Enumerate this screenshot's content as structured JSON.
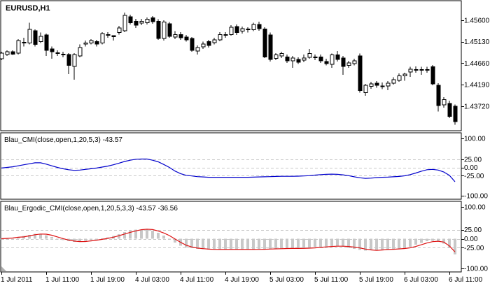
{
  "window": {
    "title": "EURUSD,H1"
  },
  "colors": {
    "background": "#ffffff",
    "panel_border": "#000000",
    "grid_dashed": "#c8c8c8",
    "bull_candle": "#ffffff",
    "bear_candle": "#000000",
    "cmi_line": "#0000cc",
    "ergodic_line": "#dd1111",
    "histogram": "#c8c8c8",
    "text": "#000000"
  },
  "main_chart": {
    "title": "EURUSD,H1",
    "price_axis_labels": [
      "1.45600",
      "1.45130",
      "1.44660",
      "1.44190",
      "1.43720"
    ]
  },
  "cmi_panel": {
    "title": "Blau_CMI(close,open,1,20,5,3) -43.57",
    "indicator_name": "Blau_CMI",
    "params": "close,open,1,20,5,3",
    "current_value": -43.57,
    "axis_labels": [
      "100.00",
      "25.00",
      "0.00",
      "-25.00",
      "-100.00"
    ]
  },
  "ergodic_panel": {
    "title": "Blau_Ergodic_CMI(close,open,1,20,5,3,3) -43.57 -36.56",
    "indicator_name": "Blau_Ergodic_CMI",
    "params": "close,open,1,20,5,3,3",
    "current_values": [
      -43.57,
      -36.56
    ],
    "axis_labels": [
      "100.00",
      "25.00",
      "0.00",
      "-25.00",
      "-100.00"
    ]
  },
  "time_axis_labels": [
    "1 Jul 2011",
    "1 Jul 11:00",
    "1 Jul 19:00",
    "4 Jul 03:00",
    "4 Jul 11:00",
    "4 Jul 19:00",
    "5 Jul 03:00",
    "5 Jul 11:00",
    "5 Jul 19:00",
    "6 Jul 03:00",
    "6 Jul 11:00"
  ],
  "chart_data": [
    {
      "type": "candlestick",
      "name": "EURUSD",
      "timeframe": "H1",
      "title": "EURUSD,H1",
      "x_tick_labels": [
        "1 Jul 2011",
        "1 Jul 11:00",
        "1 Jul 19:00",
        "4 Jul 03:00",
        "4 Jul 11:00",
        "4 Jul 19:00",
        "5 Jul 03:00",
        "5 Jul 11:00",
        "5 Jul 19:00",
        "6 Jul 03:00",
        "6 Jul 11:00"
      ],
      "y_tick_labels": [
        "1.45600",
        "1.45130",
        "1.44660",
        "1.44190",
        "1.43720"
      ],
      "bars_per_tick": 8,
      "candles_ohlc": [
        [
          1.4476,
          1.4491,
          1.4473,
          1.4488
        ],
        [
          1.4485,
          1.4494,
          1.4482,
          1.4491
        ],
        [
          1.4491,
          1.4494,
          1.4484,
          1.4486
        ],
        [
          1.4488,
          1.4519,
          1.4485,
          1.4516
        ],
        [
          1.4511,
          1.4522,
          1.4503,
          1.4512
        ],
        [
          1.451,
          1.4555,
          1.4507,
          1.454
        ],
        [
          1.4537,
          1.454,
          1.4503,
          1.4507
        ],
        [
          1.4513,
          1.4533,
          1.451,
          1.4525
        ],
        [
          1.4528,
          1.4531,
          1.4482,
          1.4494
        ],
        [
          1.4497,
          1.4503,
          1.4476,
          1.4491
        ],
        [
          1.4488,
          1.4494,
          1.4482,
          1.4489
        ],
        [
          1.4486,
          1.4491,
          1.4479,
          1.4485
        ],
        [
          1.4485,
          1.4488,
          1.4442,
          1.4461
        ],
        [
          1.4459,
          1.4488,
          1.443,
          1.4485
        ],
        [
          1.4482,
          1.4507,
          1.4479,
          1.45
        ],
        [
          1.4508,
          1.4516,
          1.4503,
          1.451
        ],
        [
          1.451,
          1.4519,
          1.4507,
          1.4516
        ],
        [
          1.4513,
          1.4517,
          1.4503,
          1.4508
        ],
        [
          1.451,
          1.4534,
          1.4507,
          1.4531
        ],
        [
          1.4528,
          1.4534,
          1.4522,
          1.4529
        ],
        [
          1.4526,
          1.4527,
          1.4516,
          1.4524
        ],
        [
          1.4533,
          1.4548,
          1.4529,
          1.4543
        ],
        [
          1.4537,
          1.4577,
          1.4534,
          1.4571
        ],
        [
          1.4568,
          1.4572,
          1.4551,
          1.4555
        ],
        [
          1.4558,
          1.4563,
          1.4543,
          1.4549
        ],
        [
          1.4554,
          1.4563,
          1.4549,
          1.4558
        ],
        [
          1.4555,
          1.4566,
          1.4551,
          1.4562
        ],
        [
          1.4565,
          1.4569,
          1.4552,
          1.4557
        ],
        [
          1.4558,
          1.4562,
          1.4517,
          1.452
        ],
        [
          1.452,
          1.456,
          1.4516,
          1.4556
        ],
        [
          1.4552,
          1.4556,
          1.4522,
          1.4525
        ],
        [
          1.4523,
          1.4536,
          1.4519,
          1.4529
        ],
        [
          1.4529,
          1.4534,
          1.4517,
          1.4522
        ],
        [
          1.4523,
          1.4528,
          1.4513,
          1.4517
        ],
        [
          1.452,
          1.4523,
          1.4491,
          1.4494
        ],
        [
          1.4493,
          1.4505,
          1.4485,
          1.45
        ],
        [
          1.4502,
          1.4513,
          1.4497,
          1.4508
        ],
        [
          1.4513,
          1.4517,
          1.45,
          1.4505
        ],
        [
          1.4511,
          1.4522,
          1.4507,
          1.4517
        ],
        [
          1.4517,
          1.4534,
          1.4514,
          1.4529
        ],
        [
          1.4528,
          1.4534,
          1.4522,
          1.4529
        ],
        [
          1.4529,
          1.4549,
          1.4526,
          1.4545
        ],
        [
          1.4546,
          1.4551,
          1.4528,
          1.4533
        ],
        [
          1.4536,
          1.4546,
          1.4531,
          1.4542
        ],
        [
          1.454,
          1.4545,
          1.4533,
          1.4541
        ],
        [
          1.4539,
          1.4555,
          1.4536,
          1.4551
        ],
        [
          1.4551,
          1.4557,
          1.4537,
          1.4542
        ],
        [
          1.4541,
          1.4545,
          1.4477,
          1.448
        ],
        [
          1.4528,
          1.4533,
          1.447,
          1.4474
        ],
        [
          1.4477,
          1.4488,
          1.4473,
          1.4484
        ],
        [
          1.4482,
          1.4491,
          1.4477,
          1.4487
        ],
        [
          1.448,
          1.4485,
          1.4467,
          1.4471
        ],
        [
          1.4471,
          1.4482,
          1.4456,
          1.4477
        ],
        [
          1.4474,
          1.4479,
          1.4464,
          1.4468
        ],
        [
          1.4473,
          1.4485,
          1.4468,
          1.4477
        ],
        [
          1.4479,
          1.4497,
          1.4476,
          1.4487
        ],
        [
          1.4479,
          1.4485,
          1.4473,
          1.448
        ],
        [
          1.448,
          1.4485,
          1.4467,
          1.4471
        ],
        [
          1.447,
          1.4476,
          1.4461,
          1.4465
        ],
        [
          1.4464,
          1.4487,
          1.4456,
          1.4484
        ],
        [
          1.4484,
          1.4493,
          1.447,
          1.4474
        ],
        [
          1.4477,
          1.4482,
          1.4441,
          1.4459
        ],
        [
          1.4461,
          1.4471,
          1.4456,
          1.4467
        ],
        [
          1.4465,
          1.4476,
          1.4461,
          1.4471
        ],
        [
          1.4482,
          1.4487,
          1.4402,
          1.4406
        ],
        [
          1.4402,
          1.4421,
          1.4395,
          1.4418
        ],
        [
          1.4415,
          1.4425,
          1.441,
          1.4421
        ],
        [
          1.4422,
          1.4427,
          1.4412,
          1.4418
        ],
        [
          1.4415,
          1.4424,
          1.4409,
          1.4416
        ],
        [
          1.4416,
          1.4427,
          1.4407,
          1.4422
        ],
        [
          1.4422,
          1.4435,
          1.4419,
          1.443
        ],
        [
          1.4428,
          1.4444,
          1.4425,
          1.4438
        ],
        [
          1.4438,
          1.4445,
          1.4428,
          1.4442
        ],
        [
          1.4447,
          1.4458,
          1.4436,
          1.4453
        ],
        [
          1.4451,
          1.4459,
          1.4445,
          1.4452
        ],
        [
          1.4452,
          1.4458,
          1.4441,
          1.4451
        ],
        [
          1.4451,
          1.4458,
          1.4445,
          1.4452
        ],
        [
          1.4458,
          1.4462,
          1.4418,
          1.4421
        ],
        [
          1.4418,
          1.4422,
          1.436,
          1.4373
        ],
        [
          1.4375,
          1.4392,
          1.4369,
          1.4386
        ],
        [
          1.4378,
          1.4384,
          1.4346,
          1.435
        ],
        [
          1.4372,
          1.4376,
          1.4331,
          1.4338
        ]
      ]
    },
    {
      "type": "line",
      "name": "Blau_CMI",
      "params": "close,open,1,20,5,3",
      "color": "#0000cc",
      "range": [
        -100,
        100
      ],
      "levels": [
        25,
        0,
        -25
      ],
      "axis_labels": [
        "100.00",
        "25.00",
        "0.00",
        "-25.00",
        "-100.00"
      ],
      "last_value": -43.57,
      "values": [
        -2,
        0,
        2,
        5,
        8,
        11,
        14,
        14,
        10,
        5,
        0,
        -4,
        -7,
        -9,
        -8,
        -6,
        -4,
        -2,
        1,
        4,
        8,
        13,
        18,
        22,
        25,
        25.5,
        25.5,
        22,
        17,
        9,
        0,
        -11,
        -19,
        -24,
        -26,
        -28,
        -29,
        -30,
        -30,
        -30,
        -30,
        -30,
        -30,
        -30,
        -30,
        -29.5,
        -29,
        -28.5,
        -28,
        -27.5,
        -27,
        -27,
        -27,
        -26.5,
        -26,
        -25,
        -23.5,
        -22,
        -21,
        -20.5,
        -21,
        -22.5,
        -25,
        -28.5,
        -31.5,
        -33.5,
        -32.5,
        -31,
        -30,
        -29.5,
        -28.5,
        -27.5,
        -25.5,
        -22,
        -17,
        -11.5,
        -7,
        -6,
        -8,
        -14,
        -24,
        -43.57
      ]
    },
    {
      "type": "line+histogram",
      "name": "Blau_Ergodic_CMI",
      "params": "close,open,1,20,5,3,3",
      "line_color": "#dd1111",
      "histogram_color": "#c8c8c8",
      "range": [
        -100,
        100
      ],
      "levels": [
        25,
        0,
        -25
      ],
      "axis_labels": [
        "100.00",
        "25.00",
        "0.00",
        "-25.00",
        "-100.00"
      ],
      "last_values": {
        "main": -43.57,
        "signal": -36.56
      },
      "histogram_values": [
        -2,
        0,
        2,
        5,
        8,
        11,
        14,
        14,
        10,
        5,
        0,
        -4,
        -7,
        -9,
        -8,
        -6,
        -4,
        -2,
        1,
        4,
        8,
        13,
        18,
        22,
        25,
        25.5,
        25.5,
        22,
        17,
        9,
        0,
        -11,
        -19,
        -24,
        -26,
        -28,
        -29,
        -30,
        -30,
        -30,
        -30,
        -30,
        -30,
        -30,
        -30,
        -29.5,
        -29,
        -28.5,
        -28,
        -27.5,
        -27,
        -27,
        -27,
        -26.5,
        -26,
        -25,
        -23.5,
        -22,
        -21,
        -20.5,
        -21,
        -22.5,
        -25,
        -28.5,
        -31.5,
        -33.5,
        -32.5,
        -31,
        -30,
        -29.5,
        -28.5,
        -27.5,
        -25.5,
        -22,
        -17,
        -11.5,
        -7,
        -6,
        -8,
        -14,
        -24,
        -43.57
      ],
      "line_values": [
        0,
        1,
        2,
        4,
        5,
        8,
        11,
        13,
        12.7,
        9.7,
        5,
        0.3,
        -3.7,
        -6.7,
        -8,
        -7.7,
        -6,
        -4,
        -1.7,
        1,
        4.3,
        8.3,
        13,
        17.7,
        21.7,
        25,
        26.5,
        25.5,
        21.5,
        16,
        8.7,
        -0.7,
        -10,
        -18,
        -23,
        -26,
        -27.7,
        -29,
        -29.7,
        -30,
        -30,
        -30,
        -30,
        -30,
        -30,
        -30,
        -29.8,
        -29.3,
        -28.8,
        -28.3,
        -27.8,
        -27.3,
        -27,
        -27,
        -26.8,
        -26.2,
        -25.5,
        -24.2,
        -22.8,
        -21.5,
        -20.8,
        -20.8,
        -21.5,
        -23.3,
        -25.7,
        -28.8,
        -31.2,
        -32.5,
        -31.3,
        -30.2,
        -29.3,
        -28.5,
        -27.2,
        -25.2,
        -21.5,
        -16.8,
        -11.8,
        -8.2,
        -7,
        -9.3,
        -20,
        -36.56
      ]
    }
  ]
}
